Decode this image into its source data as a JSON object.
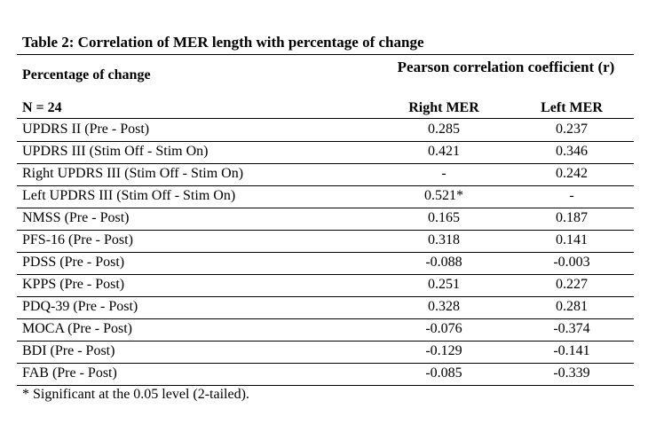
{
  "table": {
    "caption": "Table 2: Correlation of MER length with percentage of change",
    "header": {
      "first_col_title": "Percentage of change",
      "n_label": "N = 24",
      "group_title": "Pearson correlation coefficient (r)",
      "columns": [
        "Right MER",
        "Left MER"
      ]
    },
    "rows": [
      {
        "label": "UPDRS II (Pre - Post)",
        "right_mer": "0.285",
        "left_mer": "0.237"
      },
      {
        "label": "UPDRS III (Stim Off - Stim On)",
        "right_mer": "0.421",
        "left_mer": "0.346"
      },
      {
        "label": "Right UPDRS III (Stim Off - Stim On)",
        "right_mer": "-",
        "left_mer": "0.242"
      },
      {
        "label": "Left UPDRS III (Stim Off - Stim On)",
        "right_mer": "0.521*",
        "left_mer": "-"
      },
      {
        "label": "NMSS (Pre - Post)",
        "right_mer": "0.165",
        "left_mer": "0.187"
      },
      {
        "label": "PFS-16 (Pre - Post)",
        "right_mer": "0.318",
        "left_mer": "0.141"
      },
      {
        "label": "PDSS (Pre - Post)",
        "right_mer": "-0.088",
        "left_mer": "-0.003"
      },
      {
        "label": "KPPS (Pre - Post)",
        "right_mer": "0.251",
        "left_mer": "0.227"
      },
      {
        "label": "PDQ-39 (Pre - Post)",
        "right_mer": "0.328",
        "left_mer": "0.281"
      },
      {
        "label": "MOCA (Pre - Post)",
        "right_mer": "-0.076",
        "left_mer": "-0.374"
      },
      {
        "label": "BDI (Pre - Post)",
        "right_mer": "-0.129",
        "left_mer": "-0.141"
      },
      {
        "label": "FAB (Pre - Post)",
        "right_mer": "-0.085",
        "left_mer": "-0.339"
      }
    ],
    "footnote": "* Significant at the 0.05 level (2-tailed)."
  }
}
